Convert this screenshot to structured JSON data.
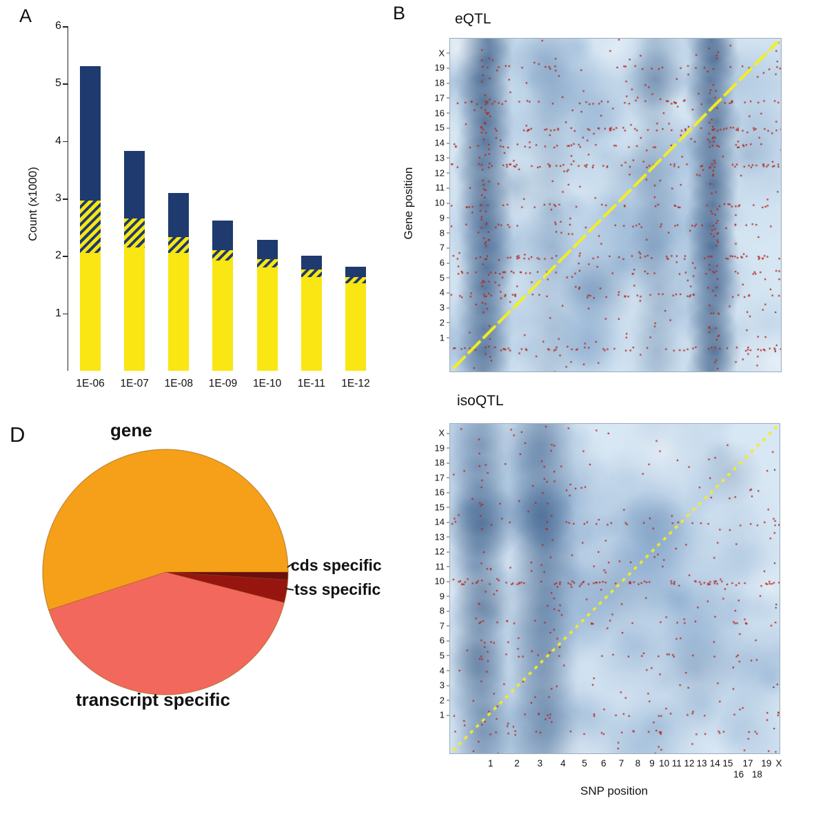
{
  "figure": {
    "panel_a_letter": "A",
    "panel_b_letter": "B",
    "panel_d_letter": "D"
  },
  "chart_data": [
    {
      "type": "bar",
      "panel": "A",
      "ylabel": "Count (x1000)",
      "ylim": [
        0,
        6
      ],
      "yticks": [
        1,
        2,
        3,
        4,
        5,
        6
      ],
      "categories": [
        "1E-06",
        "1E-07",
        "1E-08",
        "1E-09",
        "1E-10",
        "1E-11",
        "1E-12"
      ],
      "series": [
        {
          "name": "yellow-segment",
          "color": "#F9E612",
          "values": [
            2.05,
            2.15,
            2.05,
            1.92,
            1.8,
            1.63,
            1.52
          ]
        },
        {
          "name": "hatched-segment",
          "color": "hatched",
          "values": [
            0.92,
            0.5,
            0.28,
            0.18,
            0.15,
            0.13,
            0.11
          ]
        },
        {
          "name": "navy-segment",
          "color": "#1E3A6E",
          "values": [
            2.33,
            1.18,
            0.77,
            0.52,
            0.33,
            0.25,
            0.18
          ]
        }
      ],
      "totals": [
        5.3,
        3.83,
        3.1,
        2.62,
        2.28,
        2.01,
        1.81
      ]
    },
    {
      "type": "heatmap",
      "panel": "B",
      "title": "eQTL",
      "ylabel": "Gene position",
      "y_ticks": [
        "X",
        "19",
        "18",
        "17",
        "16",
        "15",
        "14",
        "13",
        "12",
        "11",
        "10",
        "9",
        "8",
        "7",
        "6",
        "5",
        "4",
        "3",
        "2",
        "1"
      ],
      "legend_note": "blue density of QTL, yellow diagonal cis-QTLs, red dots trans-QTL hotspots",
      "render": {
        "seed": 11,
        "base": "214,230,243",
        "mid": "70,118,173",
        "dark": "21,57,105",
        "red": "#B4251A",
        "soft_blobs": 150,
        "vbands": [
          {
            "x": 0.105,
            "w": 0.055,
            "a": 0.5
          },
          {
            "x": 0.795,
            "w": 0.05,
            "a": 0.55
          },
          {
            "x": 0.62,
            "w": 0.05,
            "a": 0.16
          },
          {
            "x": 0.3,
            "w": 0.05,
            "a": 0.1
          }
        ],
        "blobs": [
          {
            "x": 0.62,
            "y": 0.12,
            "r": 0.1,
            "a": 0.28
          },
          {
            "x": 0.45,
            "y": 0.75,
            "r": 0.12,
            "a": 0.18
          },
          {
            "x": 0.9,
            "y": 0.35,
            "r": 0.08,
            "a": 0.15
          },
          {
            "x": 0.2,
            "y": 0.45,
            "r": 0.09,
            "a": 0.15
          },
          {
            "x": 0.55,
            "y": 0.4,
            "r": 0.1,
            "a": 0.12
          }
        ],
        "light_blobs": [
          {
            "x": 0.02,
            "y": 0.03,
            "r": 0.1,
            "a": 0.55
          },
          {
            "x": 0.98,
            "y": 0.97,
            "r": 0.12,
            "a": 0.45
          },
          {
            "x": 0.5,
            "y": 0.03,
            "r": 0.1,
            "a": 0.3
          }
        ],
        "red_rows": [
          {
            "y": 0.085,
            "n": 25
          },
          {
            "y": 0.19,
            "n": 45
          },
          {
            "y": 0.27,
            "n": 55
          },
          {
            "y": 0.32,
            "n": 40
          },
          {
            "y": 0.38,
            "n": 60
          },
          {
            "y": 0.5,
            "n": 35
          },
          {
            "y": 0.56,
            "n": 30
          },
          {
            "y": 0.655,
            "n": 55
          },
          {
            "y": 0.7,
            "n": 40
          },
          {
            "y": 0.77,
            "n": 45
          },
          {
            "y": 0.93,
            "n": 60
          }
        ],
        "red_cols": [
          {
            "x": 0.105,
            "n": 60
          },
          {
            "x": 0.795,
            "n": 70
          }
        ],
        "red_scatter": 260,
        "diag": {
          "color": "#F4EF1F",
          "width": 4,
          "dash": [
            26,
            5
          ]
        },
        "edge_dots": 6
      }
    },
    {
      "type": "heatmap",
      "panel": "B",
      "title": "isoQTL",
      "xlabel": "SNP position",
      "y_ticks": [
        "X",
        "19",
        "18",
        "17",
        "16",
        "15",
        "14",
        "13",
        "12",
        "11",
        "10",
        "9",
        "8",
        "7",
        "6",
        "5",
        "4",
        "3",
        "2",
        "1"
      ],
      "x_ticks": [
        {
          "l": "1",
          "x": 0.125
        },
        {
          "l": "2",
          "x": 0.205
        },
        {
          "l": "3",
          "x": 0.275
        },
        {
          "l": "4",
          "x": 0.345
        },
        {
          "l": "5",
          "x": 0.41
        },
        {
          "l": "6",
          "x": 0.468
        },
        {
          "l": "7",
          "x": 0.522
        },
        {
          "l": "8",
          "x": 0.572
        },
        {
          "l": "9",
          "x": 0.615
        },
        {
          "l": "10",
          "x": 0.652
        },
        {
          "l": "11",
          "x": 0.69
        },
        {
          "l": "12",
          "x": 0.728
        },
        {
          "l": "13",
          "x": 0.766
        },
        {
          "l": "14",
          "x": 0.806
        },
        {
          "l": "15",
          "x": 0.845
        },
        {
          "l": "16",
          "x": 0.878,
          "stagger": true
        },
        {
          "l": "17",
          "x": 0.906
        },
        {
          "l": "18",
          "x": 0.934,
          "stagger": true
        },
        {
          "l": "19",
          "x": 0.962
        },
        {
          "l": "X",
          "x": 1.0
        }
      ],
      "render": {
        "seed": 29,
        "base": "216,231,244",
        "mid": "70,118,173",
        "dark": "21,57,105",
        "red": "#B4251A",
        "soft_blobs": 170,
        "vbands": [
          {
            "x": 0.09,
            "w": 0.06,
            "a": 0.28
          },
          {
            "x": 0.28,
            "w": 0.07,
            "a": 0.28
          }
        ],
        "blobs": [
          {
            "x": 0.1,
            "y": 0.3,
            "r": 0.12,
            "a": 0.35
          },
          {
            "x": 0.28,
            "y": 0.28,
            "r": 0.1,
            "a": 0.3
          },
          {
            "x": 0.08,
            "y": 0.72,
            "r": 0.1,
            "a": 0.28
          },
          {
            "x": 0.1,
            "y": 0.55,
            "r": 0.1,
            "a": 0.25
          },
          {
            "x": 0.5,
            "y": 0.5,
            "r": 0.15,
            "a": 0.12
          },
          {
            "x": 0.75,
            "y": 0.75,
            "r": 0.12,
            "a": 0.16
          },
          {
            "x": 0.62,
            "y": 0.3,
            "r": 0.1,
            "a": 0.12
          },
          {
            "x": 0.85,
            "y": 0.15,
            "r": 0.1,
            "a": 0.18
          }
        ],
        "light_blobs": [
          {
            "x": 0.65,
            "y": 0.08,
            "r": 0.12,
            "a": 0.45
          },
          {
            "x": 0.97,
            "y": 0.5,
            "r": 0.08,
            "a": 0.35
          },
          {
            "x": 0.4,
            "y": 0.97,
            "r": 0.1,
            "a": 0.3
          }
        ],
        "red_rows": [
          {
            "y": 0.48,
            "n": 75
          },
          {
            "y": 0.3,
            "n": 20
          },
          {
            "y": 0.6,
            "n": 25
          },
          {
            "y": 0.7,
            "n": 18
          },
          {
            "y": 0.88,
            "n": 20
          },
          {
            "y": 0.935,
            "n": 25
          }
        ],
        "red_cols": [
          {
            "x": 0.1,
            "n": 25
          },
          {
            "x": 0.3,
            "n": 20
          }
        ],
        "red_scatter": 230,
        "diag": {
          "color": "#F4EF1F",
          "width": 3.5,
          "dash": [
            5,
            7
          ]
        },
        "edge_dots": 8
      }
    },
    {
      "type": "pie",
      "panel": "D",
      "start_angle_deg": 0,
      "slices": [
        {
          "label": "cds specific",
          "value": 1,
          "color": "#6B0F0F"
        },
        {
          "label": "tss specific",
          "value": 3,
          "color": "#97150F"
        },
        {
          "label": "transcript specific",
          "value": 41,
          "color": "#F3685C"
        },
        {
          "label": "gene",
          "value": 55,
          "color": "#F6A019"
        }
      ]
    }
  ]
}
